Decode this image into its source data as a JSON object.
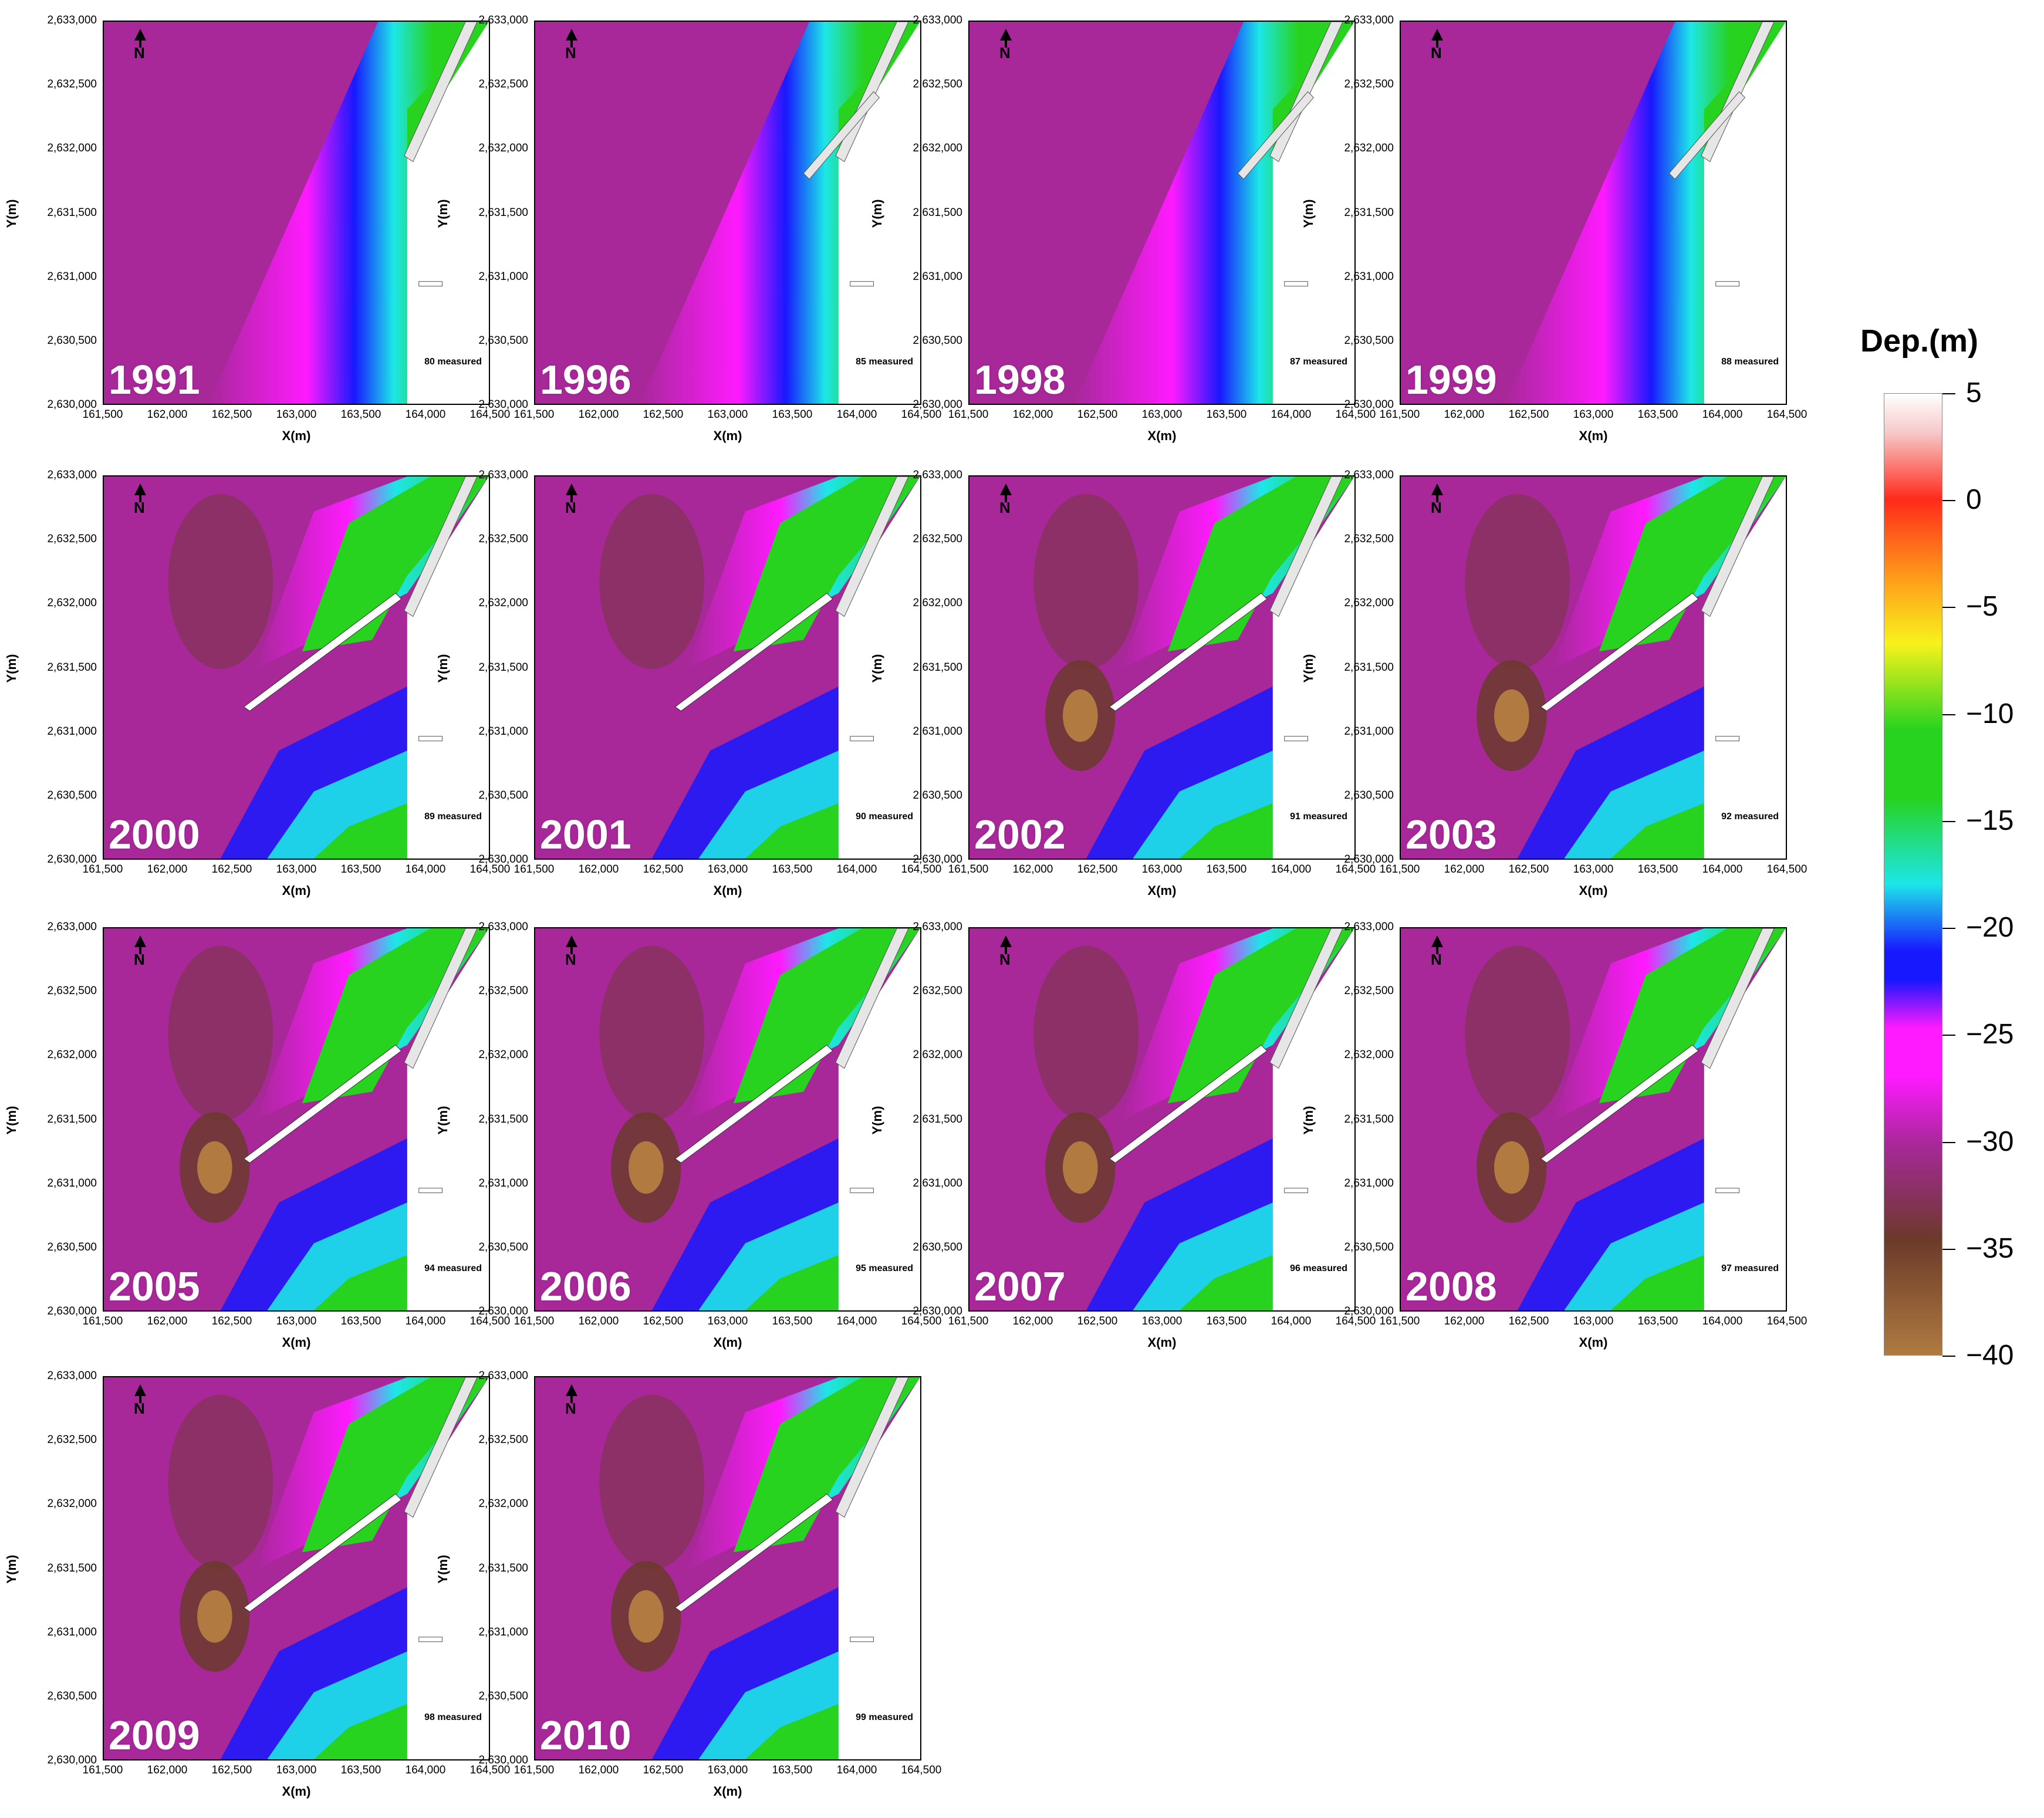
{
  "maps": [
    {
      "year": "1991",
      "measured": "80 measured"
    },
    {
      "year": "1996",
      "measured": "85 measured"
    },
    {
      "year": "1998",
      "measured": "87 measured"
    },
    {
      "year": "1999",
      "measured": "88 measured"
    },
    {
      "year": "2000",
      "measured": "89 measured"
    },
    {
      "year": "2001",
      "measured": "90 measured"
    },
    {
      "year": "2002",
      "measured": "91 measured"
    },
    {
      "year": "2003",
      "measured": "92 measured"
    },
    {
      "year": "2005",
      "measured": "94 measured"
    },
    {
      "year": "2006",
      "measured": "95 measured"
    },
    {
      "year": "2007",
      "measured": "96 measured"
    },
    {
      "year": "2008",
      "measured": "97 measured"
    },
    {
      "year": "2009",
      "measured": "98 measured"
    },
    {
      "year": "2010",
      "measured": "99 measured"
    }
  ],
  "axes": {
    "x_label": "X(m)",
    "y_label": "Y(m)",
    "x_ticks": [
      "161,500",
      "162,000",
      "162,500",
      "163,000",
      "163,500",
      "164,000",
      "164,500"
    ],
    "y_ticks": [
      "2,633,000",
      "2,632,500",
      "2,632,000",
      "2,631,500",
      "2,631,000",
      "2,630,500",
      "2,630,000"
    ]
  },
  "north_label": "N",
  "legend": {
    "title": "Dep.(m)",
    "ticks": [
      "5",
      "0",
      "−5",
      "−10",
      "−15",
      "−20",
      "−25",
      "−30",
      "−35",
      "−40"
    ],
    "range": [
      -40,
      5
    ],
    "colors": {
      "white": "#ffffff",
      "red": "#ff2a1a",
      "orange": "#ff9a1a",
      "yellow": "#f7f21c",
      "green": "#27d31e",
      "cyan": "#1de6e8",
      "blue": "#1818ff",
      "magenta": "#ff1aff",
      "purple": "#a8289a",
      "brown": "#6b3a2a",
      "tan": "#b07a40"
    }
  }
}
